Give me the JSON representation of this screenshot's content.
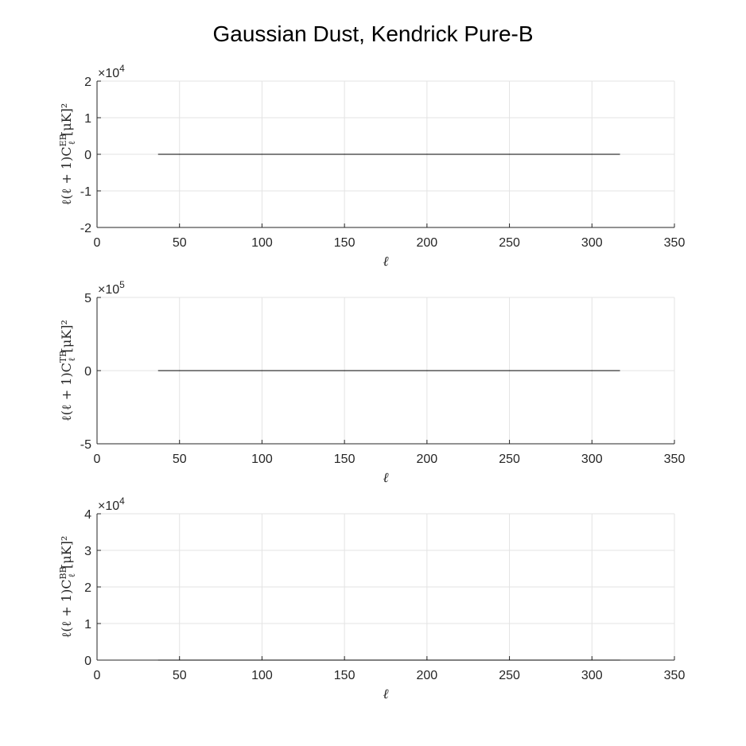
{
  "figure": {
    "title": "Gaussian Dust, Kendrick Pure-B"
  },
  "chart_data": [
    {
      "type": "line",
      "title": "",
      "xlabel": "ℓ",
      "ylabel": {
        "prefix": "ℓ(ℓ + 1)C",
        "sub": "ℓ",
        "sup": "EB",
        "suffix": "[μK]²"
      },
      "xlim": [
        0,
        350
      ],
      "ylim": [
        -2,
        2
      ],
      "x_ticks": [
        0,
        50,
        100,
        150,
        200,
        250,
        300,
        350
      ],
      "y_ticks": [
        -2,
        -1,
        0,
        1,
        2
      ],
      "y_tick_labels": [
        "-2",
        "-1",
        "0",
        "1",
        "2"
      ],
      "y_exponent": {
        "base": "×10",
        "power": "4"
      },
      "grid": true,
      "series": [
        {
          "x": [
            37,
            317
          ],
          "y": [
            0,
            0
          ],
          "color": "#000000"
        }
      ]
    },
    {
      "type": "line",
      "title": "",
      "xlabel": "ℓ",
      "ylabel": {
        "prefix": "ℓ(ℓ + 1)C",
        "sub": "ℓ",
        "sup": "TB",
        "suffix": "[μK]²"
      },
      "xlim": [
        0,
        350
      ],
      "ylim": [
        -5,
        5
      ],
      "x_ticks": [
        0,
        50,
        100,
        150,
        200,
        250,
        300,
        350
      ],
      "y_ticks": [
        -5,
        0,
        5
      ],
      "y_tick_labels": [
        "-5",
        "0",
        "5"
      ],
      "y_exponent": {
        "base": "×10",
        "power": "5"
      },
      "grid": true,
      "series": [
        {
          "x": [
            37,
            317
          ],
          "y": [
            0,
            0
          ],
          "color": "#000000"
        }
      ]
    },
    {
      "type": "line",
      "title": "",
      "xlabel": "ℓ",
      "ylabel": {
        "prefix": "ℓ(ℓ + 1)C",
        "sub": "ℓ",
        "sup": "BB",
        "suffix": "[μK]²"
      },
      "xlim": [
        0,
        350
      ],
      "ylim": [
        0,
        4
      ],
      "x_ticks": [
        0,
        50,
        100,
        150,
        200,
        250,
        300,
        350
      ],
      "y_ticks": [
        0,
        1,
        2,
        3,
        4
      ],
      "y_tick_labels": [
        "0",
        "1",
        "2",
        "3",
        "4"
      ],
      "y_exponent": {
        "base": "×10",
        "power": "4"
      },
      "grid": true,
      "series": [
        {
          "x": [
            37,
            317
          ],
          "y": [
            0,
            0
          ],
          "color": "#000000"
        }
      ]
    }
  ]
}
